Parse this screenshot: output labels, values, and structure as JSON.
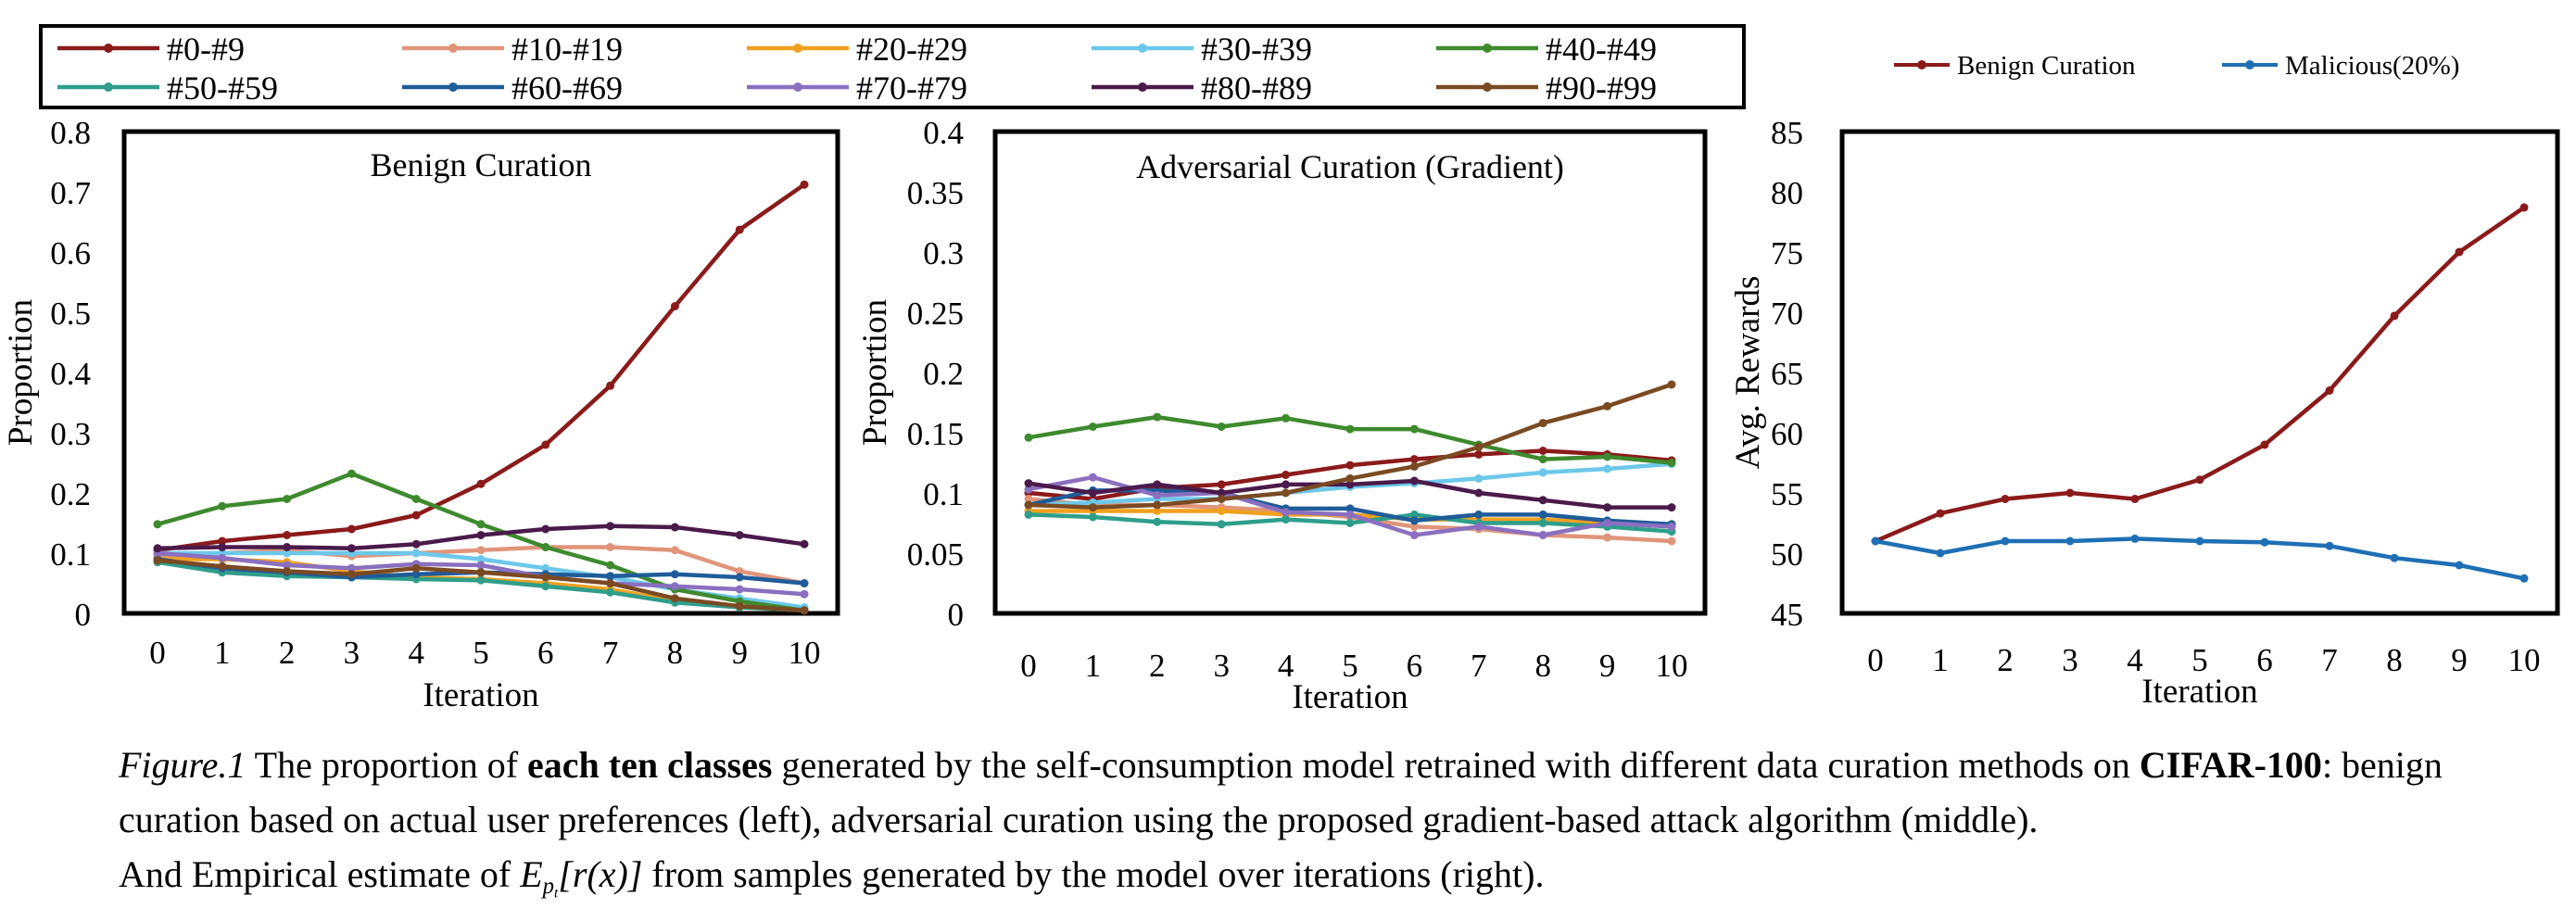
{
  "chart_data": [
    {
      "type": "line",
      "title": "Benign Curation",
      "xlabel": "Iteration",
      "ylabel": "Proportion",
      "x": [
        0,
        1,
        2,
        3,
        4,
        5,
        6,
        7,
        8,
        9,
        10
      ],
      "x_ticks": [
        "0",
        "1",
        "2",
        "3",
        "4",
        "5",
        "6",
        "7",
        "8",
        "9",
        "10"
      ],
      "ylim": [
        0,
        0.8
      ],
      "y_ticks": [
        "0",
        "0.1",
        "0.2",
        "0.3",
        "0.4",
        "0.5",
        "0.6",
        "0.7",
        "0.8"
      ],
      "grid": false,
      "series": [
        {
          "name": "#0-#9",
          "color": "#8B1A1A",
          "values": [
            0.105,
            0.12,
            0.13,
            0.14,
            0.163,
            0.215,
            0.28,
            0.378,
            0.51,
            0.637,
            0.712
          ]
        },
        {
          "name": "#10-#19",
          "color": "#E0957A",
          "values": [
            0.095,
            0.1,
            0.105,
            0.095,
            0.1,
            0.105,
            0.11,
            0.11,
            0.105,
            0.07,
            0.05
          ]
        },
        {
          "name": "#20-#29",
          "color": "#F0A020",
          "values": [
            0.09,
            0.09,
            0.085,
            0.07,
            0.06,
            0.057,
            0.05,
            0.04,
            0.02,
            0.01,
            0.005
          ]
        },
        {
          "name": "#30-#39",
          "color": "#6CC8EA",
          "values": [
            0.1,
            0.1,
            0.1,
            0.1,
            0.1,
            0.09,
            0.075,
            0.06,
            0.04,
            0.025,
            0.01
          ]
        },
        {
          "name": "#40-#49",
          "color": "#3E8A2E",
          "values": [
            0.148,
            0.178,
            0.19,
            0.232,
            0.19,
            0.148,
            0.11,
            0.08,
            0.04,
            0.02,
            0.005
          ]
        },
        {
          "name": "#50-#59",
          "color": "#2E9E8A",
          "values": [
            0.085,
            0.068,
            0.062,
            0.06,
            0.057,
            0.055,
            0.045,
            0.035,
            0.018,
            0.01,
            0.005
          ]
        },
        {
          "name": "#60-#69",
          "color": "#1F5C99",
          "values": [
            0.09,
            0.075,
            0.068,
            0.06,
            0.065,
            0.068,
            0.065,
            0.062,
            0.065,
            0.06,
            0.05
          ]
        },
        {
          "name": "#70-#79",
          "color": "#8A6FC0",
          "values": [
            0.1,
            0.092,
            0.08,
            0.075,
            0.082,
            0.08,
            0.06,
            0.05,
            0.045,
            0.04,
            0.032
          ]
        },
        {
          "name": "#80-#89",
          "color": "#4A1A4A",
          "values": [
            0.108,
            0.11,
            0.11,
            0.108,
            0.115,
            0.13,
            0.14,
            0.145,
            0.143,
            0.13,
            0.115
          ]
        },
        {
          "name": "#90-#99",
          "color": "#7A4A22",
          "values": [
            0.088,
            0.078,
            0.07,
            0.065,
            0.075,
            0.068,
            0.06,
            0.05,
            0.025,
            0.012,
            0.005
          ]
        }
      ]
    },
    {
      "type": "line",
      "title": "Adversarial Curation (Gradient)",
      "xlabel": "Iteration",
      "ylabel": "Proportion",
      "x": [
        0,
        1,
        2,
        3,
        4,
        5,
        6,
        7,
        8,
        9,
        10
      ],
      "x_ticks": [
        "0",
        "1",
        "2",
        "3",
        "4",
        "5",
        "6",
        "7",
        "8",
        "9",
        "10"
      ],
      "ylim": [
        0,
        0.4
      ],
      "y_ticks": [
        "0",
        "0.05",
        "0.1",
        "0.15",
        "0.2",
        "0.25",
        "0.3",
        "0.35",
        "0.4"
      ],
      "grid": false,
      "series": [
        {
          "name": "#0-#9",
          "color": "#8B1A1A",
          "values": [
            0.1,
            0.095,
            0.104,
            0.107,
            0.115,
            0.123,
            0.128,
            0.132,
            0.135,
            0.132,
            0.127
          ]
        },
        {
          "name": "#10-#19",
          "color": "#E0957A",
          "values": [
            0.095,
            0.09,
            0.09,
            0.088,
            0.085,
            0.08,
            0.072,
            0.07,
            0.065,
            0.063,
            0.06
          ]
        },
        {
          "name": "#20-#29",
          "color": "#F0A020",
          "values": [
            0.085,
            0.085,
            0.085,
            0.085,
            0.082,
            0.082,
            0.078,
            0.078,
            0.078,
            0.075,
            0.072
          ]
        },
        {
          "name": "#30-#39",
          "color": "#6CC8EA",
          "values": [
            0.09,
            0.092,
            0.095,
            0.095,
            0.1,
            0.105,
            0.108,
            0.112,
            0.117,
            0.12,
            0.124
          ]
        },
        {
          "name": "#40-#49",
          "color": "#3E8A2E",
          "values": [
            0.146,
            0.155,
            0.163,
            0.155,
            0.162,
            0.153,
            0.153,
            0.14,
            0.128,
            0.13,
            0.125
          ]
        },
        {
          "name": "#50-#59",
          "color": "#2E9E8A",
          "values": [
            0.082,
            0.08,
            0.076,
            0.074,
            0.078,
            0.075,
            0.082,
            0.075,
            0.075,
            0.072,
            0.068
          ]
        },
        {
          "name": "#60-#69",
          "color": "#1F5C99",
          "values": [
            0.09,
            0.102,
            0.102,
            0.1,
            0.087,
            0.087,
            0.077,
            0.082,
            0.082,
            0.077,
            0.074
          ]
        },
        {
          "name": "#70-#79",
          "color": "#8A6FC0",
          "values": [
            0.103,
            0.113,
            0.098,
            0.1,
            0.084,
            0.082,
            0.065,
            0.072,
            0.065,
            0.075,
            0.072
          ]
        },
        {
          "name": "#80-#89",
          "color": "#4A1A4A",
          "values": [
            0.108,
            0.1,
            0.107,
            0.1,
            0.107,
            0.107,
            0.11,
            0.1,
            0.094,
            0.088,
            0.088
          ]
        },
        {
          "name": "#90-#99",
          "color": "#7A4A22",
          "values": [
            0.09,
            0.088,
            0.09,
            0.095,
            0.1,
            0.112,
            0.122,
            0.138,
            0.158,
            0.172,
            0.19
          ]
        }
      ]
    },
    {
      "type": "line",
      "title": "",
      "xlabel": "Iteration",
      "ylabel": "Avg. Rewards",
      "x": [
        0,
        1,
        2,
        3,
        4,
        5,
        6,
        7,
        8,
        9,
        10
      ],
      "x_ticks": [
        "0",
        "1",
        "2",
        "3",
        "4",
        "5",
        "6",
        "7",
        "8",
        "9",
        "10"
      ],
      "ylim": [
        45,
        85
      ],
      "y_ticks": [
        "45",
        "50",
        "55",
        "60",
        "65",
        "70",
        "75",
        "80",
        "85"
      ],
      "grid": false,
      "legend_position": "top",
      "series": [
        {
          "name": "Benign Curation",
          "color": "#8B1A1A",
          "values": [
            51,
            53.3,
            54.5,
            55,
            54.5,
            56.1,
            59,
            63.5,
            69.7,
            75,
            78.7
          ]
        },
        {
          "name": "Malicious(20%)",
          "color": "#1F6FB5",
          "values": [
            51,
            50,
            51,
            51,
            51.2,
            51,
            50.9,
            50.6,
            49.6,
            49,
            47.9
          ]
        }
      ]
    }
  ],
  "shared_legend": [
    "#0-#9",
    "#10-#19",
    "#20-#29",
    "#30-#39",
    "#40-#49",
    "#50-#59",
    "#60-#69",
    "#70-#79",
    "#80-#89",
    "#90-#99"
  ],
  "caption": {
    "figure_label": "Figure.1",
    "t1": " The proportion of ",
    "b1": "each ten classes",
    "t2": " generated by the self-consumption model retrained with different data curation methods on ",
    "b2": "CIFAR-100",
    "t3": ": benign curation based on actual user preferences (left), adversarial curation using the proposed gradient-based attack algorithm (middle).",
    "t4": "And Empirical estimate of ",
    "math_main": "E",
    "math_sub": "p",
    "math_subsub": "t",
    "math_rest": "[r(x)]",
    "t5": " from samples generated by the model over iterations (right)."
  }
}
